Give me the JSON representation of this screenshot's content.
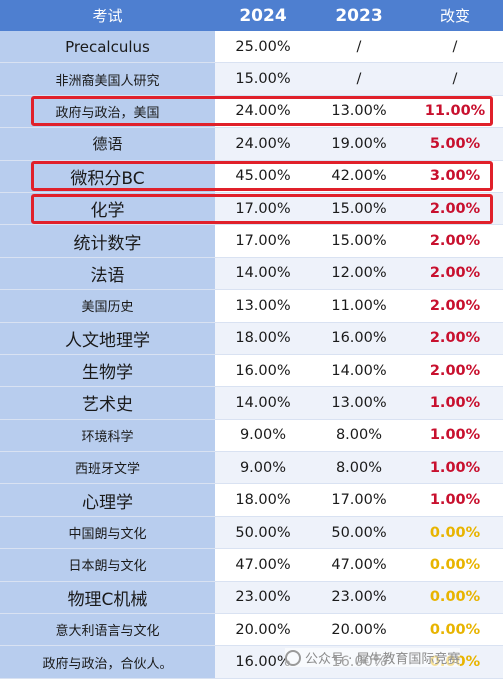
{
  "header": {
    "subject": "考试",
    "y2024": "2024",
    "y2023": "2023",
    "change": "改变"
  },
  "rows": [
    {
      "subject": "Precalculus",
      "y2024": "25.00%",
      "y2023": "/",
      "change": "/",
      "size": "m",
      "color": "dark"
    },
    {
      "subject": "非洲裔美国人研究",
      "y2024": "15.00%",
      "y2023": "/",
      "change": "/",
      "size": "s",
      "color": "dark"
    },
    {
      "subject": "政府与政治，美国",
      "y2024": "24.00%",
      "y2023": "13.00%",
      "change": "11.00%",
      "size": "s",
      "color": "red"
    },
    {
      "subject": "德语",
      "y2024": "24.00%",
      "y2023": "19.00%",
      "change": "5.00%",
      "size": "m",
      "color": "red"
    },
    {
      "subject": "微积分BC",
      "y2024": "45.00%",
      "y2023": "42.00%",
      "change": "3.00%",
      "size": "l",
      "color": "red"
    },
    {
      "subject": "化学",
      "y2024": "17.00%",
      "y2023": "15.00%",
      "change": "2.00%",
      "size": "l",
      "color": "red"
    },
    {
      "subject": "统计数字",
      "y2024": "17.00%",
      "y2023": "15.00%",
      "change": "2.00%",
      "size": "l",
      "color": "red"
    },
    {
      "subject": "法语",
      "y2024": "14.00%",
      "y2023": "12.00%",
      "change": "2.00%",
      "size": "l",
      "color": "red"
    },
    {
      "subject": "美国历史",
      "y2024": "13.00%",
      "y2023": "11.00%",
      "change": "2.00%",
      "size": "s",
      "color": "red"
    },
    {
      "subject": "人文地理学",
      "y2024": "18.00%",
      "y2023": "16.00%",
      "change": "2.00%",
      "size": "l",
      "color": "red"
    },
    {
      "subject": "生物学",
      "y2024": "16.00%",
      "y2023": "14.00%",
      "change": "2.00%",
      "size": "l",
      "color": "red"
    },
    {
      "subject": "艺术史",
      "y2024": "14.00%",
      "y2023": "13.00%",
      "change": "1.00%",
      "size": "l",
      "color": "red"
    },
    {
      "subject": "环境科学",
      "y2024": "9.00%",
      "y2023": "8.00%",
      "change": "1.00%",
      "size": "s",
      "color": "red"
    },
    {
      "subject": "西班牙文学",
      "y2024": "9.00%",
      "y2023": "8.00%",
      "change": "1.00%",
      "size": "s",
      "color": "red"
    },
    {
      "subject": "心理学",
      "y2024": "18.00%",
      "y2023": "17.00%",
      "change": "1.00%",
      "size": "l",
      "color": "red"
    },
    {
      "subject": "中国朗与文化",
      "y2024": "50.00%",
      "y2023": "50.00%",
      "change": "0.00%",
      "size": "s",
      "color": "yel"
    },
    {
      "subject": "日本朗与文化",
      "y2024": "47.00%",
      "y2023": "47.00%",
      "change": "0.00%",
      "size": "s",
      "color": "yel"
    },
    {
      "subject": "物理C机械",
      "y2024": "23.00%",
      "y2023": "23.00%",
      "change": "0.00%",
      "size": "l",
      "color": "yel"
    },
    {
      "subject": "意大利语言与文化",
      "y2024": "20.00%",
      "y2023": "20.00%",
      "change": "0.00%",
      "size": "s",
      "color": "yel"
    },
    {
      "subject": "政府与政治，合伙人。",
      "y2024": "16.00%",
      "y2023": "16.00%",
      "change": "0.00%",
      "size": "s",
      "color": "yel"
    }
  ],
  "watermark": {
    "text": "公众号 · 犀牛教育国际竞赛"
  }
}
